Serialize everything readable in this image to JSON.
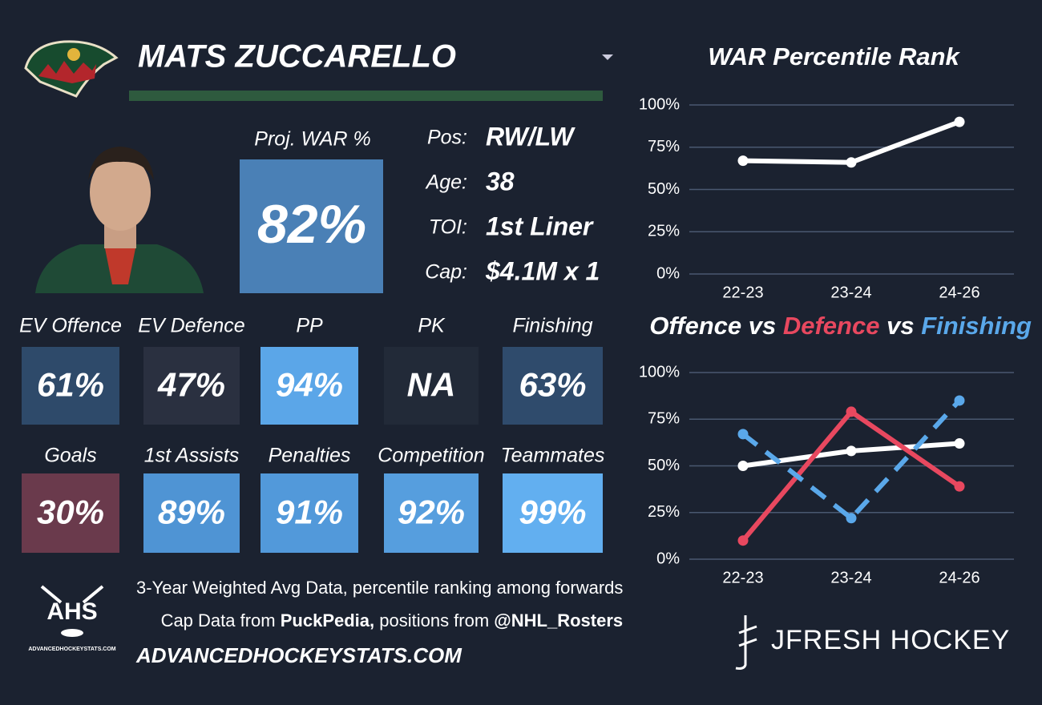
{
  "header": {
    "player_name": "MATS ZUCCARELLO"
  },
  "projection": {
    "label": "Proj. WAR %",
    "value": "82%",
    "color": "#4a80b6"
  },
  "info": [
    {
      "label": "Pos:",
      "value": "RW/LW"
    },
    {
      "label": "Age:",
      "value": "38"
    },
    {
      "label": "TOI:",
      "value": "1st Liner"
    },
    {
      "label": "Cap:",
      "value": "$4.1M x 1"
    }
  ],
  "tiles": [
    {
      "label": "EV Offence",
      "value": "61%",
      "color": "#2e4a6a"
    },
    {
      "label": "EV Defence",
      "value": "47%",
      "color": "#2a3040"
    },
    {
      "label": "PP",
      "value": "94%",
      "color": "#5ba6e8"
    },
    {
      "label": "PK",
      "value": "NA",
      "color": "#222a38"
    },
    {
      "label": "Finishing",
      "value": "63%",
      "color": "#2f4b6c"
    },
    {
      "label": "Goals",
      "value": "30%",
      "color": "#6a3a4c"
    },
    {
      "label": "1st Assists",
      "value": "89%",
      "color": "#4f94d4"
    },
    {
      "label": "Penalties",
      "value": "91%",
      "color": "#5299da"
    },
    {
      "label": "Competition",
      "value": "92%",
      "color": "#569ede"
    },
    {
      "label": "Teammates",
      "value": "99%",
      "color": "#62aff0"
    }
  ],
  "footer": {
    "note": "3-Year Weighted Avg Data, percentile ranking among forwards",
    "credits": [
      "Cap Data from ",
      "PuckPedia,",
      " positions from ",
      "@NHL_Rosters"
    ],
    "site": "ADVANCEDHOCKEYSTATS.COM",
    "logo_text": "AHS",
    "logo_caption": "ADVANCEDHOCKEYSTATS.COM",
    "brand": "JFRESH HOCKEY"
  },
  "chart_data": [
    {
      "type": "line",
      "title": "WAR Percentile Rank",
      "categories": [
        "22-23",
        "23-24",
        "24-26"
      ],
      "series": [
        {
          "color": "#ffffff",
          "values": [
            67,
            66,
            90
          ]
        }
      ],
      "ylim": [
        0,
        100
      ],
      "yticks": [
        {
          "value": 0,
          "label": "0%"
        },
        {
          "value": 25,
          "label": "25%"
        },
        {
          "value": 50,
          "label": "50%"
        },
        {
          "value": 75,
          "label": "75%"
        },
        {
          "value": 100,
          "label": "100%"
        }
      ],
      "grid": true
    },
    {
      "type": "line",
      "title_joiner": "vs",
      "categories": [
        "22-23",
        "23-24",
        "24-26"
      ],
      "series": [
        {
          "name": "Offence",
          "color": "#ffffff",
          "values": [
            50,
            58,
            62
          ]
        },
        {
          "name": "Defence",
          "color": "#e8485f",
          "values": [
            10,
            79,
            39
          ]
        },
        {
          "name": "Finishing",
          "color": "#5aa8ea",
          "dashed": true,
          "values": [
            67,
            22,
            85
          ]
        }
      ],
      "ylim": [
        0,
        100
      ],
      "yticks": [
        {
          "value": 0,
          "label": "0%"
        },
        {
          "value": 25,
          "label": "25%"
        },
        {
          "value": 50,
          "label": "50%"
        },
        {
          "value": 75,
          "label": "75%"
        },
        {
          "value": 100,
          "label": "100%"
        }
      ],
      "grid": true
    }
  ]
}
